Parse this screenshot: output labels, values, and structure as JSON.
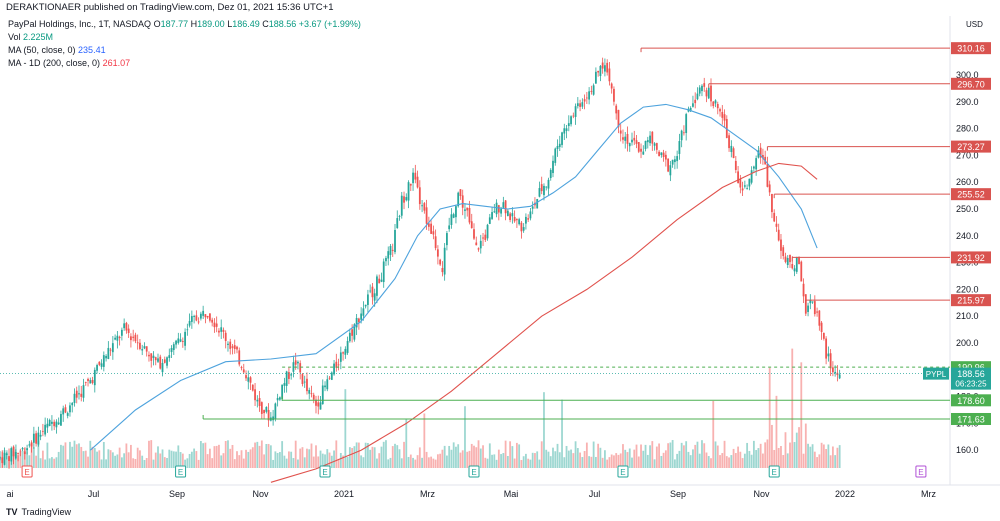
{
  "header": {
    "publisher_line": "DERAKTIONAER published on TradingView.com, Dez 01, 2021 15:36 UTC+1"
  },
  "legend": {
    "symbol_line": "PayPal Holdings, Inc., 1T, NASDAQ",
    "ohlc": {
      "O_label": "O",
      "O": "187.77",
      "H_label": "H",
      "H": "189.00",
      "L_label": "L",
      "L": "186.49",
      "C_label": "C",
      "C": "188.56",
      "change": "+3.67 (+1.99%)"
    },
    "vol_label": "Vol",
    "vol_value": "2.225M",
    "ma50_label": "MA (50, close, 0)",
    "ma50_value": "235.41",
    "ma200_label": "MA - 1D (200, close, 0)",
    "ma200_value": "261.07"
  },
  "footer": {
    "logo_glyph": "TV",
    "brand": "TradingView"
  },
  "colors": {
    "up": "#26a69a",
    "down": "#ef5350",
    "ma50": "#4ea3dd",
    "ma200": "#e0524d",
    "resistance": "#d9534f",
    "support": "#4caf50",
    "last_price": "#26a69a"
  },
  "chart_data": {
    "type": "candlestick",
    "currency": "USD",
    "ylim": [
      147,
      322
    ],
    "y_ticks": [
      160,
      170,
      180,
      190,
      200,
      210,
      220,
      230,
      240,
      250,
      260,
      270,
      280,
      290,
      300,
      310
    ],
    "x_ticks": [
      "ai",
      "Jul",
      "Sep",
      "Nov",
      "2021",
      "Mrz",
      "Mai",
      "Jul",
      "Sep",
      "Nov",
      "2022",
      "Mrz"
    ],
    "price_path": [
      [
        0,
        157
      ],
      [
        10,
        160
      ],
      [
        20,
        168
      ],
      [
        30,
        176
      ],
      [
        40,
        186
      ],
      [
        48,
        197
      ],
      [
        55,
        205
      ],
      [
        62,
        200
      ],
      [
        70,
        192
      ],
      [
        78,
        199
      ],
      [
        85,
        208
      ],
      [
        92,
        212
      ],
      [
        100,
        202
      ],
      [
        108,
        191
      ],
      [
        114,
        178
      ],
      [
        120,
        172
      ],
      [
        125,
        184
      ],
      [
        131,
        193
      ],
      [
        136,
        182
      ],
      [
        140,
        177
      ],
      [
        148,
        190
      ],
      [
        155,
        203
      ],
      [
        162,
        215
      ],
      [
        168,
        224
      ],
      [
        174,
        236
      ],
      [
        178,
        253
      ],
      [
        183,
        262
      ],
      [
        187,
        250
      ],
      [
        192,
        240
      ],
      [
        196,
        228
      ],
      [
        199,
        244
      ],
      [
        203,
        256
      ],
      [
        207,
        248
      ],
      [
        211,
        235
      ],
      [
        215,
        240
      ],
      [
        219,
        250
      ],
      [
        223,
        252
      ],
      [
        227,
        246
      ],
      [
        231,
        244
      ],
      [
        235,
        248
      ],
      [
        239,
        256
      ],
      [
        243,
        262
      ],
      [
        247,
        274
      ],
      [
        251,
        282
      ],
      [
        255,
        288
      ],
      [
        259,
        292
      ],
      [
        263,
        297
      ],
      [
        267,
        304
      ],
      [
        270,
        300
      ],
      [
        273,
        285
      ],
      [
        276,
        278
      ],
      [
        280,
        274
      ],
      [
        284,
        272
      ],
      [
        288,
        276
      ],
      [
        292,
        270
      ],
      [
        296,
        266
      ],
      [
        300,
        270
      ],
      [
        304,
        284
      ],
      [
        308,
        292
      ],
      [
        312,
        296
      ],
      [
        316,
        290
      ],
      [
        320,
        284
      ],
      [
        324,
        272
      ],
      [
        327,
        260
      ],
      [
        330,
        257
      ],
      [
        333,
        266
      ],
      [
        336,
        272
      ],
      [
        339,
        265
      ],
      [
        342,
        250
      ],
      [
        345,
        240
      ],
      [
        348,
        230
      ],
      [
        351,
        229
      ],
      [
        354,
        230
      ],
      [
        357,
        212
      ],
      [
        360,
        215
      ],
      [
        363,
        208
      ],
      [
        366,
        196
      ],
      [
        369,
        189
      ],
      [
        372,
        188.56
      ]
    ],
    "ma50_path": [
      [
        40,
        160
      ],
      [
        60,
        175
      ],
      [
        80,
        186
      ],
      [
        100,
        193
      ],
      [
        120,
        194
      ],
      [
        140,
        196
      ],
      [
        160,
        208
      ],
      [
        175,
        224
      ],
      [
        185,
        240
      ],
      [
        195,
        250
      ],
      [
        205,
        252
      ],
      [
        215,
        251
      ],
      [
        225,
        250
      ],
      [
        235,
        251
      ],
      [
        245,
        256
      ],
      [
        255,
        262
      ],
      [
        265,
        272
      ],
      [
        275,
        282
      ],
      [
        285,
        288
      ],
      [
        295,
        289
      ],
      [
        305,
        287
      ],
      [
        315,
        284
      ],
      [
        325,
        278
      ],
      [
        335,
        272
      ],
      [
        345,
        262
      ],
      [
        355,
        250
      ],
      [
        362,
        235.41
      ]
    ],
    "ma200_path": [
      [
        120,
        148
      ],
      [
        140,
        153
      ],
      [
        160,
        160
      ],
      [
        180,
        170
      ],
      [
        200,
        182
      ],
      [
        220,
        196
      ],
      [
        240,
        210
      ],
      [
        260,
        220
      ],
      [
        280,
        232
      ],
      [
        300,
        246
      ],
      [
        320,
        258
      ],
      [
        335,
        264
      ],
      [
        345,
        267
      ],
      [
        355,
        266
      ],
      [
        362,
        261.07
      ]
    ],
    "volume": {
      "description": "volume histogram under price",
      "spike_indices": [
        153,
        180,
        188,
        206,
        241,
        249,
        316,
        341,
        344,
        351,
        355
      ]
    },
    "earnings_markers": [
      {
        "label": "E",
        "x": 12,
        "color": "red"
      },
      {
        "label": "E",
        "x": 80,
        "color": "green"
      },
      {
        "label": "E",
        "x": 144,
        "color": "green"
      },
      {
        "label": "E",
        "x": 210,
        "color": "green"
      },
      {
        "label": "E",
        "x": 276,
        "color": "green"
      },
      {
        "label": "E",
        "x": 343,
        "color": "green"
      },
      {
        "label": "E",
        "x": 408,
        "color": "purple"
      }
    ],
    "horizontal_levels": [
      {
        "value": 310,
        "label": "310.16",
        "color": "resistance",
        "from_x": 284
      },
      {
        "value": 296.7,
        "label": "296.70",
        "color": "resistance",
        "from_x": 314
      },
      {
        "value": 273.27,
        "label": "273.27",
        "color": "resistance",
        "from_x": 340
      },
      {
        "value": 255.52,
        "label": "255.52",
        "color": "resistance",
        "from_x": 343
      },
      {
        "value": 231.92,
        "label": "231.92",
        "color": "resistance",
        "from_x": 351
      },
      {
        "value": 215.97,
        "label": "215.97",
        "color": "resistance",
        "from_x": 357
      },
      {
        "value": 190.96,
        "label": "190.96",
        "color": "support_dashed",
        "from_x": 125
      },
      {
        "value": 178.6,
        "label": "178.60",
        "color": "support",
        "from_x": 125
      },
      {
        "value": 171.63,
        "label": "171.63",
        "color": "support",
        "from_x": 90
      }
    ],
    "last_price": {
      "symbol": "PYPL",
      "value": "188.56",
      "countdown": "06:23:25"
    }
  }
}
